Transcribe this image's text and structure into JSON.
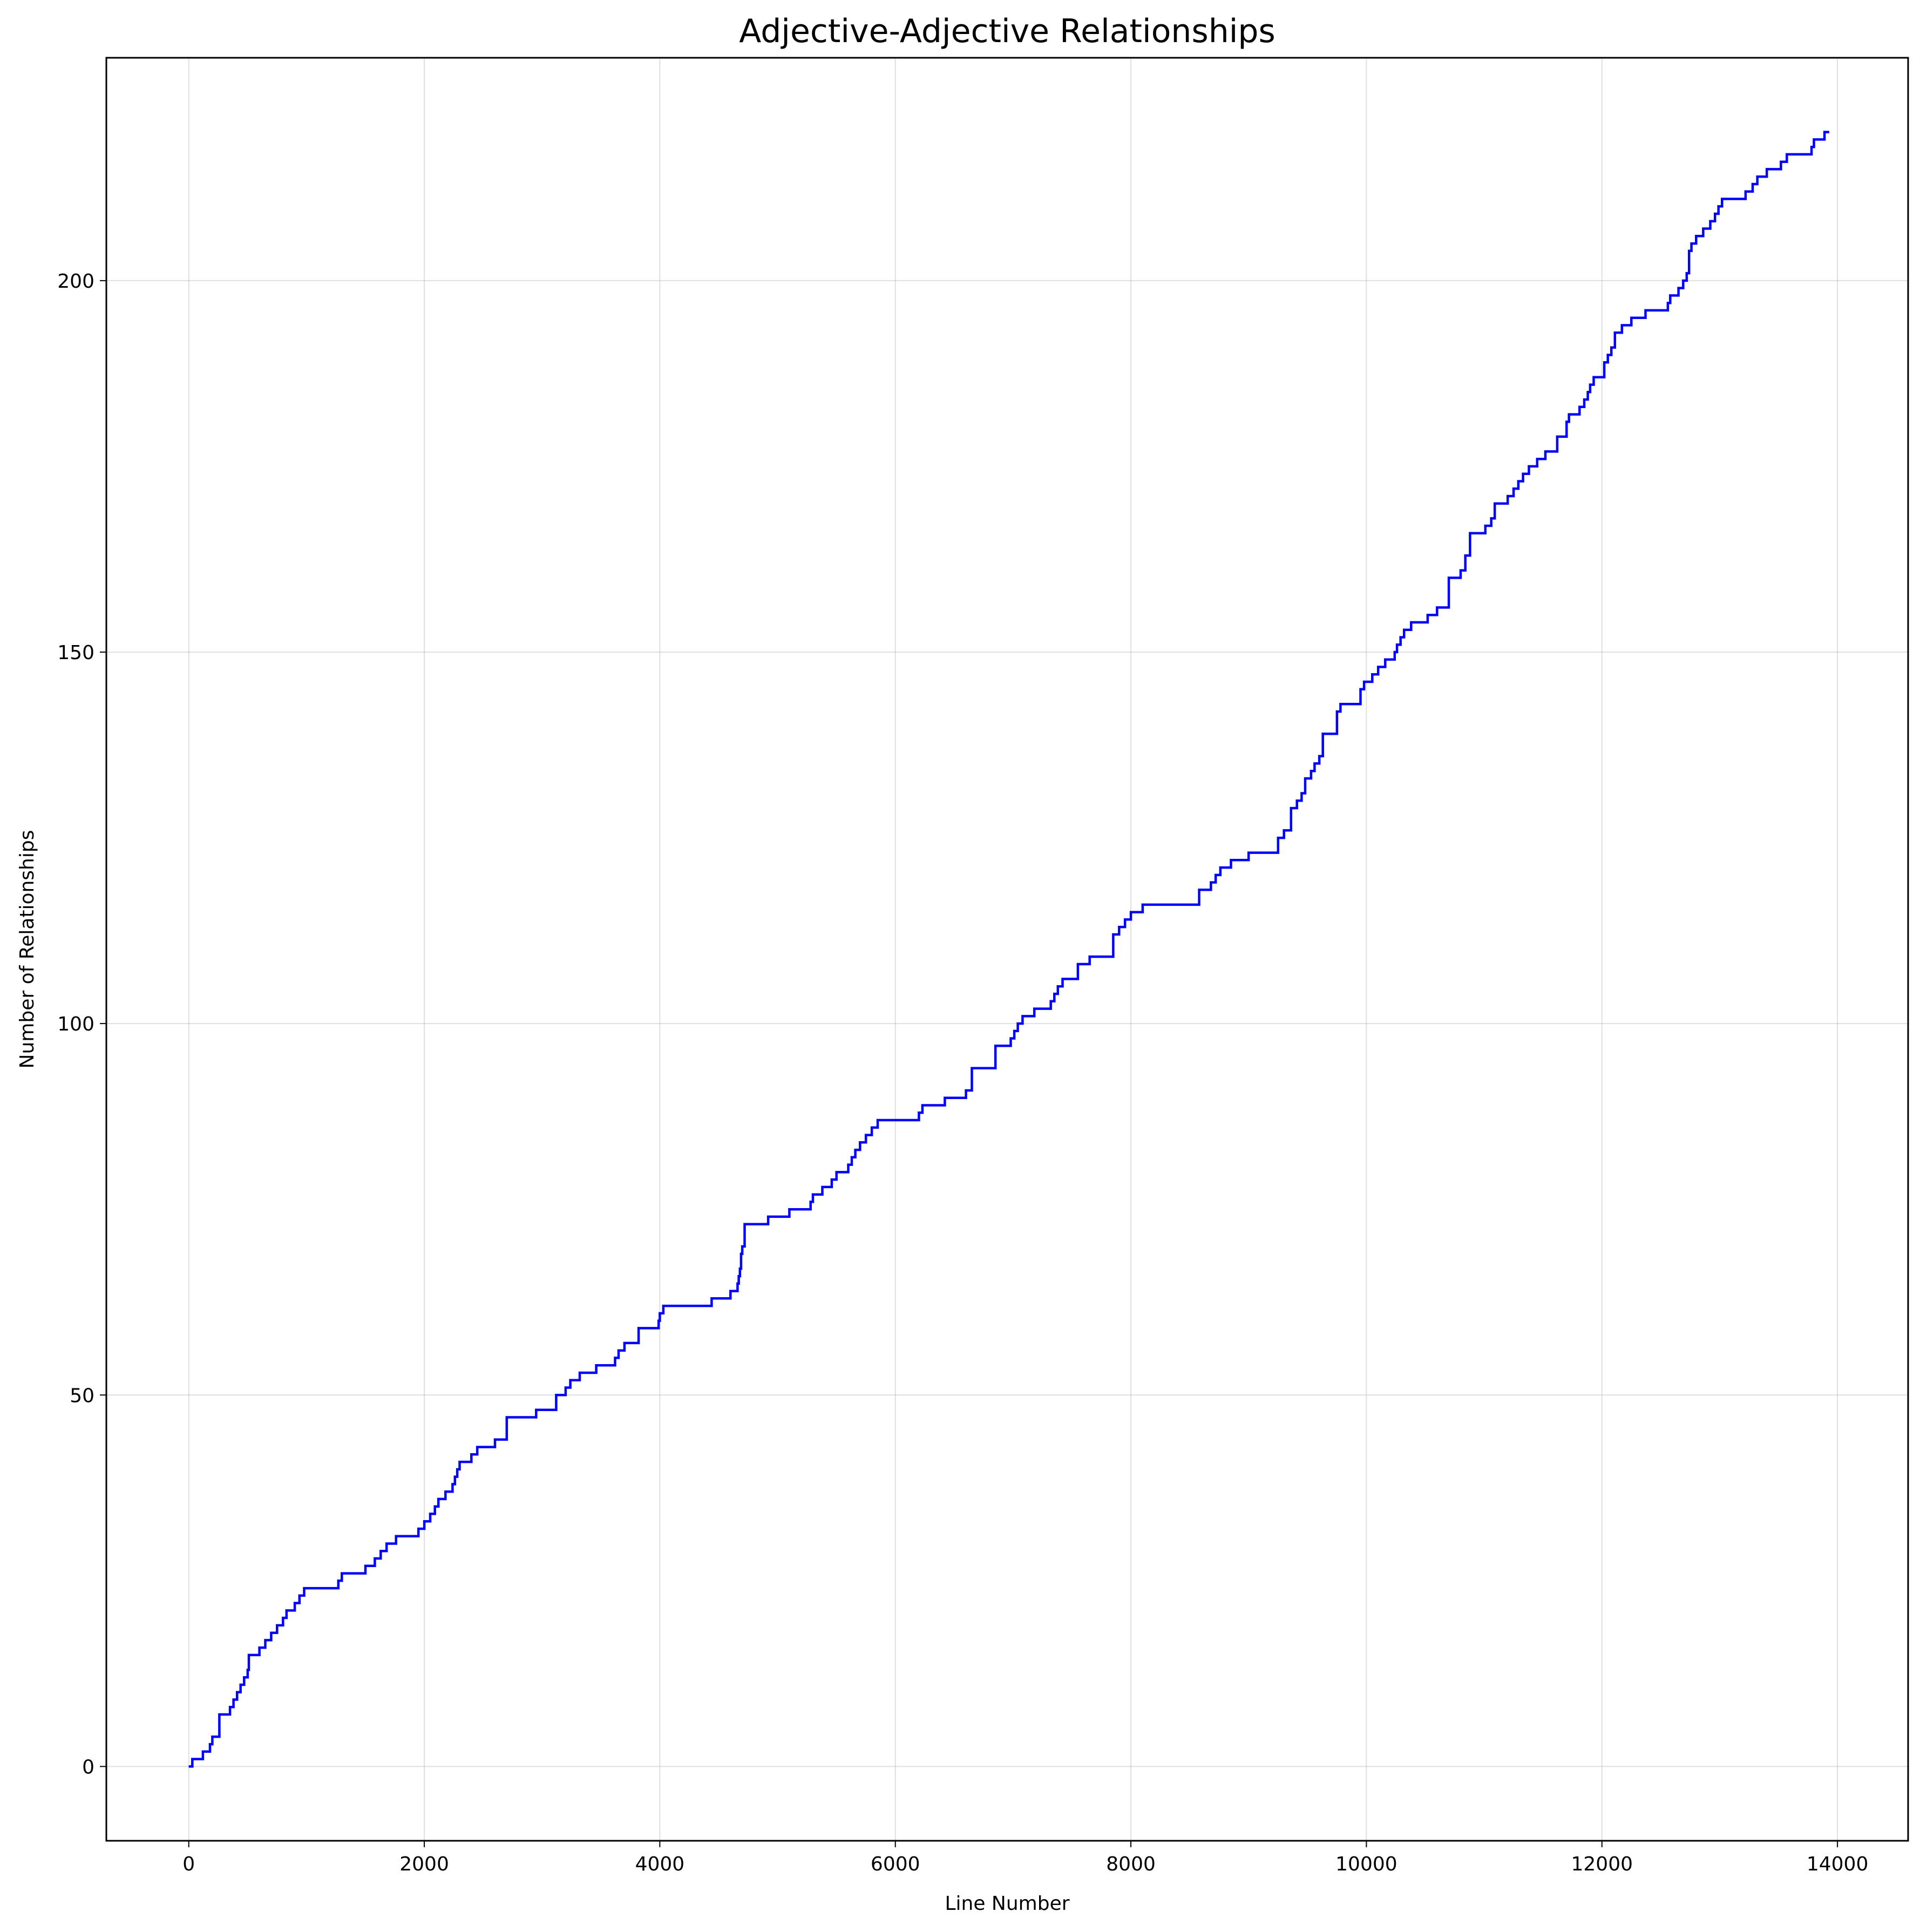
{
  "chart_data": {
    "type": "line",
    "title": "Adjective-Adjective Relationships",
    "xlabel": "Line Number",
    "ylabel": "Number of Relationships",
    "xlim": [
      -700,
      14600
    ],
    "ylim": [
      -10,
      230
    ],
    "xticks": [
      0,
      2000,
      4000,
      6000,
      8000,
      10000,
      12000,
      14000
    ],
    "yticks": [
      0,
      50,
      100,
      150,
      200
    ],
    "grid": true,
    "step": true,
    "series": [
      {
        "color": "#0000ff",
        "points": [
          [
            0,
            0
          ],
          [
            30,
            1
          ],
          [
            120,
            2
          ],
          [
            180,
            3
          ],
          [
            200,
            4
          ],
          [
            260,
            7
          ],
          [
            350,
            8
          ],
          [
            380,
            9
          ],
          [
            410,
            10
          ],
          [
            440,
            11
          ],
          [
            470,
            12
          ],
          [
            500,
            13
          ],
          [
            510,
            15
          ],
          [
            600,
            16
          ],
          [
            650,
            17
          ],
          [
            700,
            18
          ],
          [
            750,
            19
          ],
          [
            800,
            20
          ],
          [
            830,
            21
          ],
          [
            900,
            22
          ],
          [
            940,
            23
          ],
          [
            980,
            24
          ],
          [
            1270,
            25
          ],
          [
            1300,
            26
          ],
          [
            1500,
            27
          ],
          [
            1580,
            28
          ],
          [
            1630,
            29
          ],
          [
            1680,
            30
          ],
          [
            1760,
            31
          ],
          [
            1950,
            32
          ],
          [
            2000,
            33
          ],
          [
            2050,
            34
          ],
          [
            2090,
            35
          ],
          [
            2120,
            36
          ],
          [
            2180,
            37
          ],
          [
            2240,
            38
          ],
          [
            2260,
            39
          ],
          [
            2280,
            40
          ],
          [
            2300,
            41
          ],
          [
            2400,
            42
          ],
          [
            2450,
            43
          ],
          [
            2600,
            44
          ],
          [
            2700,
            47
          ],
          [
            2950,
            48
          ],
          [
            3120,
            50
          ],
          [
            3200,
            51
          ],
          [
            3240,
            52
          ],
          [
            3320,
            53
          ],
          [
            3460,
            54
          ],
          [
            3620,
            55
          ],
          [
            3650,
            56
          ],
          [
            3700,
            57
          ],
          [
            3820,
            59
          ],
          [
            3990,
            60
          ],
          [
            4000,
            61
          ],
          [
            4030,
            62
          ],
          [
            4440,
            63
          ],
          [
            4600,
            64
          ],
          [
            4660,
            65
          ],
          [
            4670,
            66
          ],
          [
            4680,
            67
          ],
          [
            4690,
            69
          ],
          [
            4700,
            70
          ],
          [
            4720,
            73
          ],
          [
            4920,
            74
          ],
          [
            5100,
            75
          ],
          [
            5280,
            76
          ],
          [
            5300,
            77
          ],
          [
            5380,
            78
          ],
          [
            5460,
            79
          ],
          [
            5500,
            80
          ],
          [
            5600,
            81
          ],
          [
            5630,
            82
          ],
          [
            5660,
            83
          ],
          [
            5700,
            84
          ],
          [
            5750,
            85
          ],
          [
            5800,
            86
          ],
          [
            5850,
            87
          ],
          [
            6200,
            88
          ],
          [
            6230,
            89
          ],
          [
            6420,
            90
          ],
          [
            6600,
            91
          ],
          [
            6650,
            94
          ],
          [
            6850,
            97
          ],
          [
            6980,
            98
          ],
          [
            7010,
            99
          ],
          [
            7040,
            100
          ],
          [
            7080,
            101
          ],
          [
            7180,
            102
          ],
          [
            7320,
            103
          ],
          [
            7350,
            104
          ],
          [
            7380,
            105
          ],
          [
            7420,
            106
          ],
          [
            7550,
            108
          ],
          [
            7650,
            109
          ],
          [
            7850,
            112
          ],
          [
            7900,
            113
          ],
          [
            7950,
            114
          ],
          [
            8000,
            115
          ],
          [
            8100,
            116
          ],
          [
            8580,
            118
          ],
          [
            8680,
            119
          ],
          [
            8720,
            120
          ],
          [
            8760,
            121
          ],
          [
            8850,
            122
          ],
          [
            9000,
            123
          ],
          [
            9250,
            125
          ],
          [
            9300,
            126
          ],
          [
            9360,
            129
          ],
          [
            9410,
            130
          ],
          [
            9450,
            131
          ],
          [
            9480,
            133
          ],
          [
            9530,
            134
          ],
          [
            9560,
            135
          ],
          [
            9600,
            136
          ],
          [
            9630,
            139
          ],
          [
            9750,
            142
          ],
          [
            9780,
            143
          ],
          [
            9950,
            145
          ],
          [
            9980,
            146
          ],
          [
            10050,
            147
          ],
          [
            10100,
            148
          ],
          [
            10160,
            149
          ],
          [
            10240,
            150
          ],
          [
            10260,
            151
          ],
          [
            10290,
            152
          ],
          [
            10320,
            153
          ],
          [
            10380,
            154
          ],
          [
            10520,
            155
          ],
          [
            10600,
            156
          ],
          [
            10700,
            160
          ],
          [
            10800,
            161
          ],
          [
            10840,
            163
          ],
          [
            10880,
            166
          ],
          [
            11010,
            167
          ],
          [
            11060,
            168
          ],
          [
            11090,
            170
          ],
          [
            11200,
            171
          ],
          [
            11250,
            172
          ],
          [
            11290,
            173
          ],
          [
            11330,
            174
          ],
          [
            11380,
            175
          ],
          [
            11450,
            176
          ],
          [
            11520,
            177
          ],
          [
            11620,
            179
          ],
          [
            11700,
            181
          ],
          [
            11720,
            182
          ],
          [
            11810,
            183
          ],
          [
            11850,
            184
          ],
          [
            11880,
            185
          ],
          [
            11900,
            186
          ],
          [
            11930,
            187
          ],
          [
            12020,
            189
          ],
          [
            12050,
            190
          ],
          [
            12080,
            191
          ],
          [
            12110,
            193
          ],
          [
            12170,
            194
          ],
          [
            12250,
            195
          ],
          [
            12370,
            196
          ],
          [
            12560,
            197
          ],
          [
            12580,
            198
          ],
          [
            12650,
            199
          ],
          [
            12690,
            200
          ],
          [
            12720,
            201
          ],
          [
            12740,
            204
          ],
          [
            12760,
            205
          ],
          [
            12800,
            206
          ],
          [
            12860,
            207
          ],
          [
            12920,
            208
          ],
          [
            12960,
            209
          ],
          [
            12990,
            210
          ],
          [
            13020,
            211
          ],
          [
            13220,
            212
          ],
          [
            13280,
            213
          ],
          [
            13320,
            214
          ],
          [
            13400,
            215
          ],
          [
            13520,
            216
          ],
          [
            13570,
            217
          ],
          [
            13780,
            218
          ],
          [
            13800,
            219
          ],
          [
            13890,
            220
          ],
          [
            13930,
            220
          ]
        ]
      }
    ]
  }
}
